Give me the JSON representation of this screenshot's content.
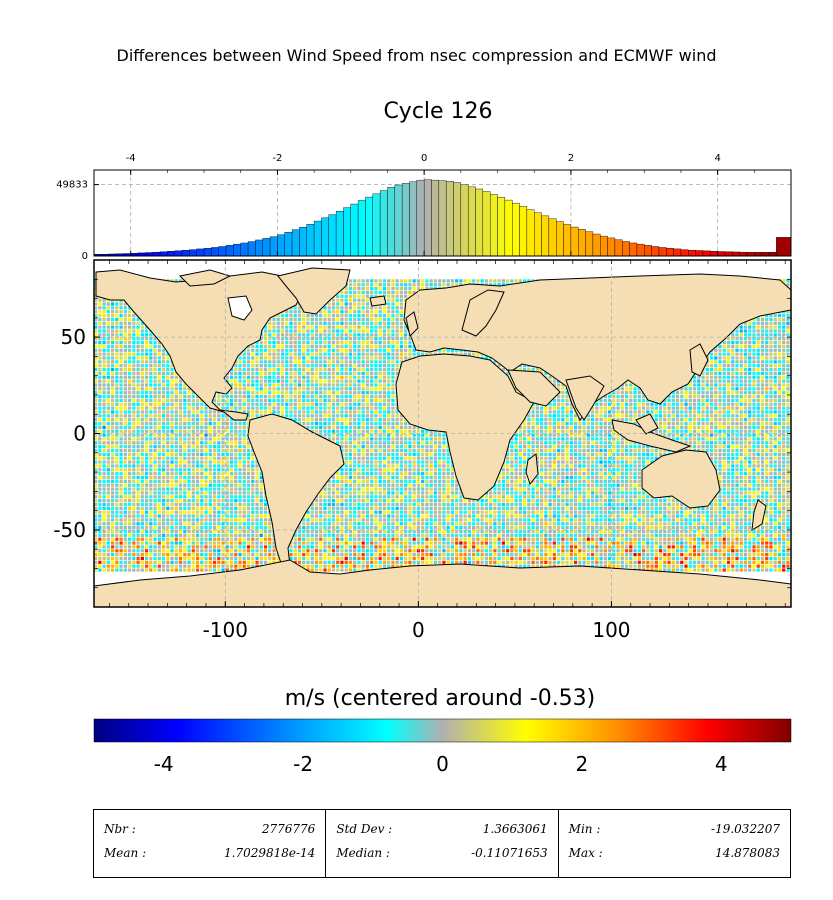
{
  "title": "Differences between Wind Speed from nsec compression and ECMWF wind",
  "subtitle": "Cycle 126",
  "colorbar_label": "m/s (centered around -0.53)",
  "colors": {
    "land": "#f5deb3",
    "frame": "#000000",
    "grid": "#b0b0b0",
    "colormap": [
      "#00007f",
      "#0000ff",
      "#00a0ff",
      "#00ffff",
      "#b0b0b0",
      "#ffff00",
      "#ff9000",
      "#ff0000",
      "#7f0000"
    ]
  },
  "stats": [
    [
      {
        "label": "Nbr :",
        "value": "2776776"
      },
      {
        "label": "Mean :",
        "value": "1.7029818e-14"
      }
    ],
    [
      {
        "label": "Std Dev :",
        "value": "1.3663061"
      },
      {
        "label": "Median :",
        "value": "-0.11071653"
      }
    ],
    [
      {
        "label": "Min :",
        "value": "-19.032207"
      },
      {
        "label": "Max :",
        "value": "14.878083"
      }
    ]
  ],
  "chart_data": [
    {
      "type": "bar",
      "name": "histogram",
      "x_ticks": [
        "-4",
        "-2",
        "0",
        "2",
        "4"
      ],
      "y_ticks": [
        "0",
        "49833"
      ],
      "xlim": [
        -4.5,
        5.0
      ],
      "ylim": [
        0,
        60000
      ],
      "grid": true,
      "bins": [
        {
          "x": -4.4,
          "y": 1200
        },
        {
          "x": -4.0,
          "y": 1800
        },
        {
          "x": -3.6,
          "y": 2800
        },
        {
          "x": -3.2,
          "y": 4200
        },
        {
          "x": -2.8,
          "y": 6200
        },
        {
          "x": -2.4,
          "y": 9500
        },
        {
          "x": -2.0,
          "y": 14000
        },
        {
          "x": -1.6,
          "y": 21000
        },
        {
          "x": -1.2,
          "y": 30000
        },
        {
          "x": -0.8,
          "y": 40000
        },
        {
          "x": -0.4,
          "y": 49000
        },
        {
          "x": 0.0,
          "y": 53500
        },
        {
          "x": 0.4,
          "y": 52000
        },
        {
          "x": 0.8,
          "y": 46000
        },
        {
          "x": 1.2,
          "y": 38000
        },
        {
          "x": 1.6,
          "y": 29000
        },
        {
          "x": 2.0,
          "y": 21000
        },
        {
          "x": 2.4,
          "y": 14500
        },
        {
          "x": 2.8,
          "y": 9500
        },
        {
          "x": 3.2,
          "y": 6200
        },
        {
          "x": 3.6,
          "y": 4200
        },
        {
          "x": 4.0,
          "y": 3200
        },
        {
          "x": 4.4,
          "y": 2600
        },
        {
          "x": 4.9,
          "y": 13000
        }
      ]
    },
    {
      "type": "heatmap",
      "name": "map",
      "x_ticks": [
        "-100",
        "0",
        "100"
      ],
      "y_ticks": [
        "50",
        "0",
        "-50"
      ],
      "xlim": [
        -168,
        193
      ],
      "ylim": [
        -90,
        90
      ],
      "grid": true,
      "data_lat_range": [
        -72,
        80
      ],
      "color_range": [
        -5,
        5
      ]
    },
    {
      "type": "heatmap",
      "name": "colorbar",
      "ticks": [
        "-4",
        "-2",
        "0",
        "2",
        "4"
      ],
      "range": [
        -5,
        5
      ]
    }
  ]
}
